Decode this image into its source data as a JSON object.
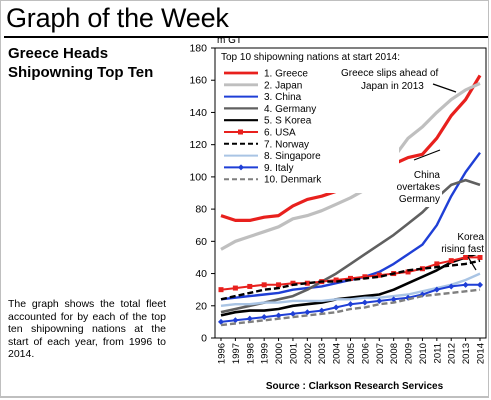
{
  "header": {
    "title": "Graph of the Week"
  },
  "subtitle": "Greece Heads Shipowning Top Ten",
  "description": "The graph shows the total fleet accounted for by each of the top ten shipowning nations at the start of each year, from 1996 to 2014.",
  "source": "Source : Clarkson Research Services",
  "chart_data": {
    "type": "line",
    "title": "Top 10 shipowning nations at start 2014:",
    "ylabel": "m GT",
    "ylim": [
      0,
      180
    ],
    "yticks": [
      0,
      20,
      40,
      60,
      80,
      100,
      120,
      140,
      160,
      180
    ],
    "grid": false,
    "legend_position": "top-left",
    "x": [
      "1996",
      "1997",
      "1998",
      "1999",
      "2000",
      "2001",
      "2002",
      "2003",
      "2004",
      "2005",
      "2006",
      "2007",
      "2008",
      "2009",
      "2010",
      "2011",
      "2012",
      "2013",
      "2014"
    ],
    "series": [
      {
        "name": "1. Greece",
        "color": "#e8201d",
        "style": "solid",
        "width": 3.2,
        "values": [
          76,
          73,
          73,
          75,
          76,
          82,
          86,
          88,
          91,
          94,
          96,
          101,
          108,
          112,
          114,
          124,
          138,
          148,
          163
        ]
      },
      {
        "name": "2. Japan",
        "color": "#bfbfbf",
        "style": "solid",
        "width": 3.2,
        "values": [
          55,
          60,
          63,
          66,
          69,
          74,
          76,
          79,
          83,
          87,
          92,
          102,
          112,
          124,
          131,
          140,
          148,
          154,
          158
        ]
      },
      {
        "name": "3. China",
        "color": "#1f3fd6",
        "style": "solid",
        "width": 2.4,
        "values": [
          24,
          25,
          26,
          27,
          28,
          30,
          31,
          32,
          34,
          36,
          38,
          41,
          46,
          52,
          58,
          70,
          88,
          103,
          115
        ]
      },
      {
        "name": "4. Germany",
        "color": "#606060",
        "style": "solid",
        "width": 2.6,
        "values": [
          16,
          18,
          20,
          22,
          24,
          26,
          30,
          35,
          40,
          46,
          52,
          58,
          64,
          71,
          78,
          87,
          95,
          98,
          95
        ]
      },
      {
        "name": "5. S Korea",
        "color": "#000000",
        "style": "solid",
        "width": 2.6,
        "values": [
          14,
          16,
          17,
          17,
          18,
          20,
          21,
          22,
          24,
          25,
          26,
          27,
          30,
          34,
          38,
          42,
          47,
          50,
          53
        ]
      },
      {
        "name": "6. USA",
        "color": "#e8201d",
        "style": "marker",
        "width": 2,
        "values": [
          30,
          31,
          32,
          33,
          33,
          34,
          34,
          35,
          36,
          37,
          38,
          39,
          40,
          41,
          43,
          46,
          48,
          50,
          50
        ]
      },
      {
        "name": "7. Norway",
        "color": "#000000",
        "style": "dashed",
        "width": 2.4,
        "values": [
          24,
          26,
          28,
          30,
          31,
          33,
          34,
          35,
          35,
          36,
          37,
          38,
          40,
          42,
          43,
          44,
          45,
          46,
          48
        ]
      },
      {
        "name": "8. Singapore",
        "color": "#a9c4e4",
        "style": "solid",
        "width": 2.4,
        "values": [
          20,
          21,
          21,
          22,
          22,
          23,
          23,
          23,
          24,
          24,
          25,
          25,
          26,
          27,
          29,
          31,
          33,
          36,
          40
        ]
      },
      {
        "name": "9. Italy",
        "color": "#1f3fd6",
        "style": "marker",
        "width": 2,
        "values": [
          10,
          11,
          12,
          13,
          14,
          15,
          16,
          17,
          19,
          21,
          22,
          23,
          24,
          25,
          27,
          30,
          32,
          33,
          33
        ]
      },
      {
        "name": "10. Denmark",
        "color": "#7f7f7f",
        "style": "dashed",
        "width": 2.4,
        "values": [
          8,
          9,
          10,
          11,
          12,
          13,
          14,
          15,
          16,
          18,
          19,
          21,
          22,
          24,
          26,
          27,
          28,
          29,
          30
        ]
      }
    ],
    "annotations": [
      {
        "text": "Greece slips ahead of",
        "text2": "Japan in 2013"
      },
      {
        "text": "China",
        "text2": "overtakes",
        "text3": "Germany"
      },
      {
        "text": "Korea",
        "text2": "rising fast"
      }
    ]
  }
}
